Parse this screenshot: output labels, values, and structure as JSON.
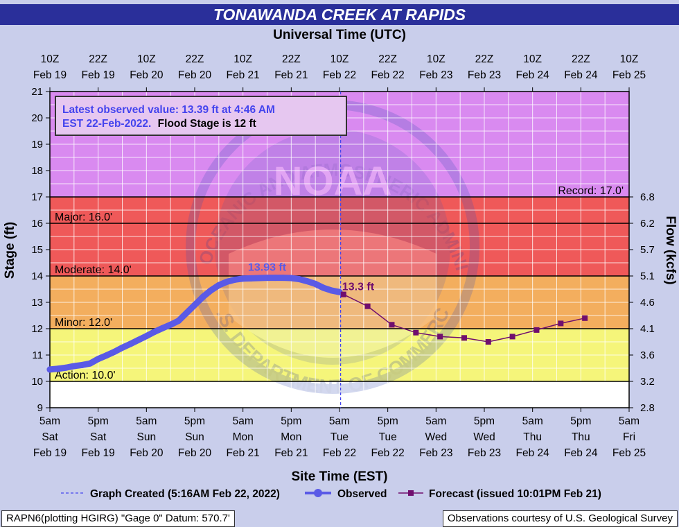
{
  "title": "TONAWANDA CREEK AT RAPIDS",
  "colors": {
    "record_zone": "#d98af0",
    "major_zone": "#ef5959",
    "moderate_zone": "#f3ae5e",
    "minor_zone": "#f5f57a",
    "action_zone": "#ffffff",
    "observed": "#5a5ae6",
    "forecast": "#700e6e",
    "title_bar": "#2a2f9a"
  },
  "chart_data": {
    "type": "line",
    "top_axis_label": "Universal Time (UTC)",
    "xlabel": "Site Time (EST)",
    "ylabel": "Stage (ft)",
    "y2label": "Flow (kcfs)",
    "ylim": [
      9,
      21
    ],
    "y_ticks": [
      "9",
      "10",
      "11",
      "12",
      "13",
      "14",
      "15",
      "16",
      "17",
      "18",
      "19",
      "20",
      "21"
    ],
    "flow_ticks": [
      {
        "stage": 9,
        "label": "2.8"
      },
      {
        "stage": 10,
        "label": "3.2"
      },
      {
        "stage": 11,
        "label": "3.6"
      },
      {
        "stage": 12,
        "label": "4.1"
      },
      {
        "stage": 13,
        "label": "4.6"
      },
      {
        "stage": 14,
        "label": "5.1"
      },
      {
        "stage": 15,
        "label": "5.7"
      },
      {
        "stage": 16,
        "label": "6.2"
      },
      {
        "stage": 17,
        "label": "6.8"
      }
    ],
    "bottom_ticks": [
      [
        "5am",
        "Sat",
        "Feb 19"
      ],
      [
        "5pm",
        "Sat",
        "Feb 19"
      ],
      [
        "5am",
        "Sun",
        "Feb 20"
      ],
      [
        "5pm",
        "Sun",
        "Feb 20"
      ],
      [
        "5am",
        "Mon",
        "Feb 21"
      ],
      [
        "5pm",
        "Mon",
        "Feb 21"
      ],
      [
        "5am",
        "Tue",
        "Feb 22"
      ],
      [
        "5pm",
        "Tue",
        "Feb 22"
      ],
      [
        "5am",
        "Wed",
        "Feb 23"
      ],
      [
        "5pm",
        "Wed",
        "Feb 23"
      ],
      [
        "5am",
        "Thu",
        "Feb 24"
      ],
      [
        "5pm",
        "Thu",
        "Feb 24"
      ],
      [
        "5am",
        "Fri",
        "Feb 25"
      ]
    ],
    "top_ticks": [
      [
        "10Z",
        "Feb 19"
      ],
      [
        "22Z",
        "Feb 19"
      ],
      [
        "10Z",
        "Feb 20"
      ],
      [
        "22Z",
        "Feb 20"
      ],
      [
        "10Z",
        "Feb 21"
      ],
      [
        "22Z",
        "Feb 21"
      ],
      [
        "10Z",
        "Feb 22"
      ],
      [
        "22Z",
        "Feb 22"
      ],
      [
        "10Z",
        "Feb 23"
      ],
      [
        "22Z",
        "Feb 23"
      ],
      [
        "10Z",
        "Feb 24"
      ],
      [
        "22Z",
        "Feb 24"
      ],
      [
        "10Z",
        "Feb 25"
      ]
    ],
    "thresholds": [
      {
        "label": "Action: 10.0'",
        "stage": 10
      },
      {
        "label": "Minor: 12.0'",
        "stage": 12
      },
      {
        "label": "Moderate: 14.0'",
        "stage": 14
      },
      {
        "label": "Major: 16.0'",
        "stage": 16
      },
      {
        "label": "Record: 17.0'",
        "stage": 17
      }
    ],
    "observed": {
      "name": "Observed",
      "x_hours": [
        0,
        2,
        4,
        6,
        8,
        10,
        12,
        14,
        16,
        18,
        20,
        22,
        24,
        26,
        28,
        30,
        32,
        34,
        36,
        38,
        40,
        42,
        44,
        46,
        48,
        50,
        52,
        54,
        56,
        58,
        60,
        62,
        64,
        66,
        68,
        70,
        72
      ],
      "values": [
        10.45,
        10.48,
        10.52,
        10.58,
        10.62,
        10.68,
        10.85,
        10.98,
        11.12,
        11.28,
        11.42,
        11.57,
        11.72,
        11.88,
        12.02,
        12.15,
        12.3,
        12.6,
        12.9,
        13.2,
        13.45,
        13.65,
        13.78,
        13.86,
        13.9,
        13.91,
        13.92,
        13.93,
        13.93,
        13.93,
        13.92,
        13.88,
        13.8,
        13.7,
        13.55,
        13.45,
        13.39
      ]
    },
    "forecast": {
      "name": "Forecast (issued 10:01PM Feb 21)",
      "x_hours": [
        73,
        79,
        85,
        91,
        97,
        103,
        109,
        115,
        121,
        127,
        133
      ],
      "values": [
        13.3,
        12.85,
        12.15,
        11.85,
        11.7,
        11.65,
        11.5,
        11.7,
        11.95,
        12.2,
        12.4
      ]
    },
    "peak_label": "13.93 ft",
    "forecast_start_label": "13.3 ft",
    "graph_created_x_hours": 72.27,
    "legend": {
      "graph_created": "Graph Created (5:16AM Feb 22, 2022)",
      "observed": "Observed",
      "forecast": "Forecast (issued 10:01PM Feb 21)"
    },
    "annotation": {
      "line1": "Latest observed value: 13.39 ft at 4:46 AM",
      "line2": "EST 22-Feb-2022.",
      "line2_b": "Flood Stage is 12 ft"
    },
    "watermark_text": {
      "top": "NATIONAL OCEANIC AND ATMOSPHERIC ADMINISTRATION",
      "center": "NOAA",
      "bottom": "U.S. DEPARTMENT OF COMMERCE"
    }
  },
  "footer": {
    "left": "RAPN6(plotting HGIRG) \"Gage 0\" Datum: 570.7'",
    "right": "Observations courtesy of U.S. Geological Survey"
  }
}
